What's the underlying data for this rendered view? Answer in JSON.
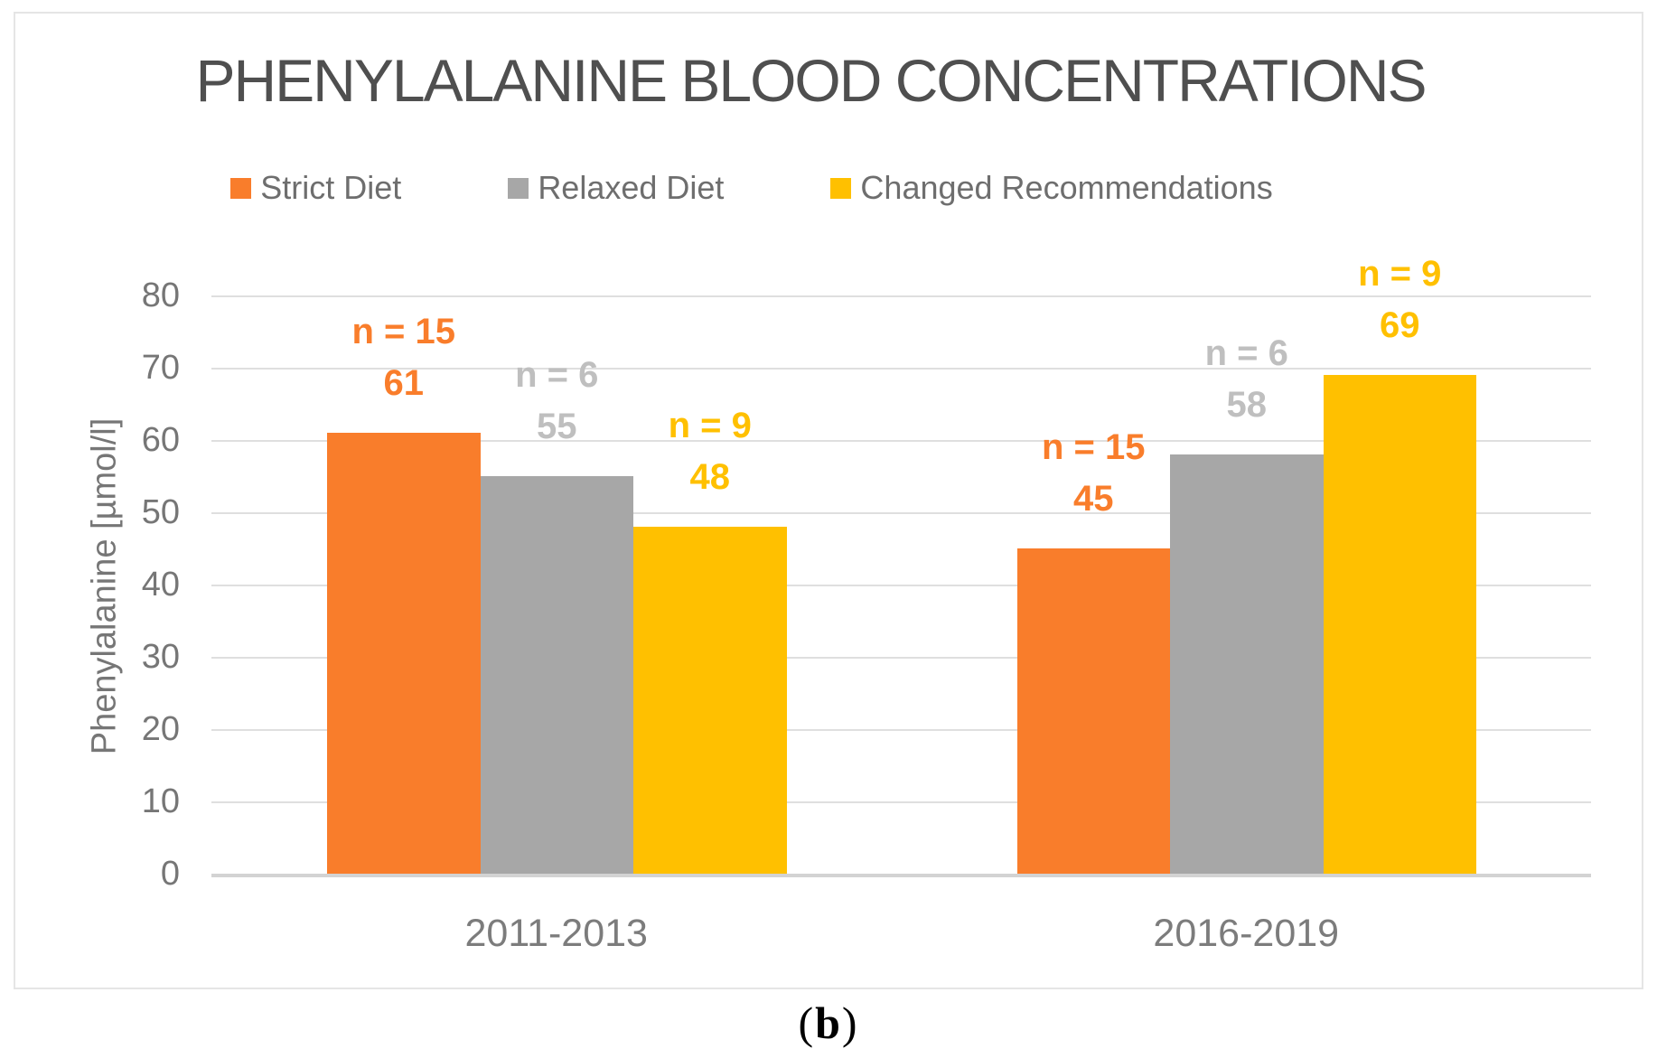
{
  "figure": {
    "caption": {
      "open": "(",
      "letter": "b",
      "close": ")"
    }
  },
  "chart_data": {
    "type": "bar",
    "title": "PHENYLALANINE BLOOD CONCENTRATIONS",
    "categories": [
      "2011-2013",
      "2016-2019"
    ],
    "series": [
      {
        "name": "Strict Diet",
        "color": "#F97D2B",
        "label_color": "#F97D2B",
        "values": [
          61,
          45
        ],
        "n_labels": [
          "n = 15",
          "n = 15"
        ]
      },
      {
        "name": "Relaxed Diet",
        "color": "#A7A7A7",
        "label_color": "#BFBFBF",
        "values": [
          55,
          58
        ],
        "n_labels": [
          "n = 6",
          "n = 6"
        ]
      },
      {
        "name": "Changed Recommendations",
        "color": "#FFC000",
        "label_color": "#FFC000",
        "values": [
          48,
          69
        ],
        "n_labels": [
          "n = 9",
          "n = 9"
        ]
      }
    ],
    "ylabel": "Phenylalanine [µmol/l]",
    "ylim": [
      0,
      80
    ],
    "yticks": [
      0,
      10,
      20,
      30,
      40,
      50,
      60,
      70,
      80
    ],
    "grid": true,
    "legend_position": "top-center",
    "gridline_color": "#DFDFDF",
    "axis_line_color": "#D3D3D3"
  }
}
